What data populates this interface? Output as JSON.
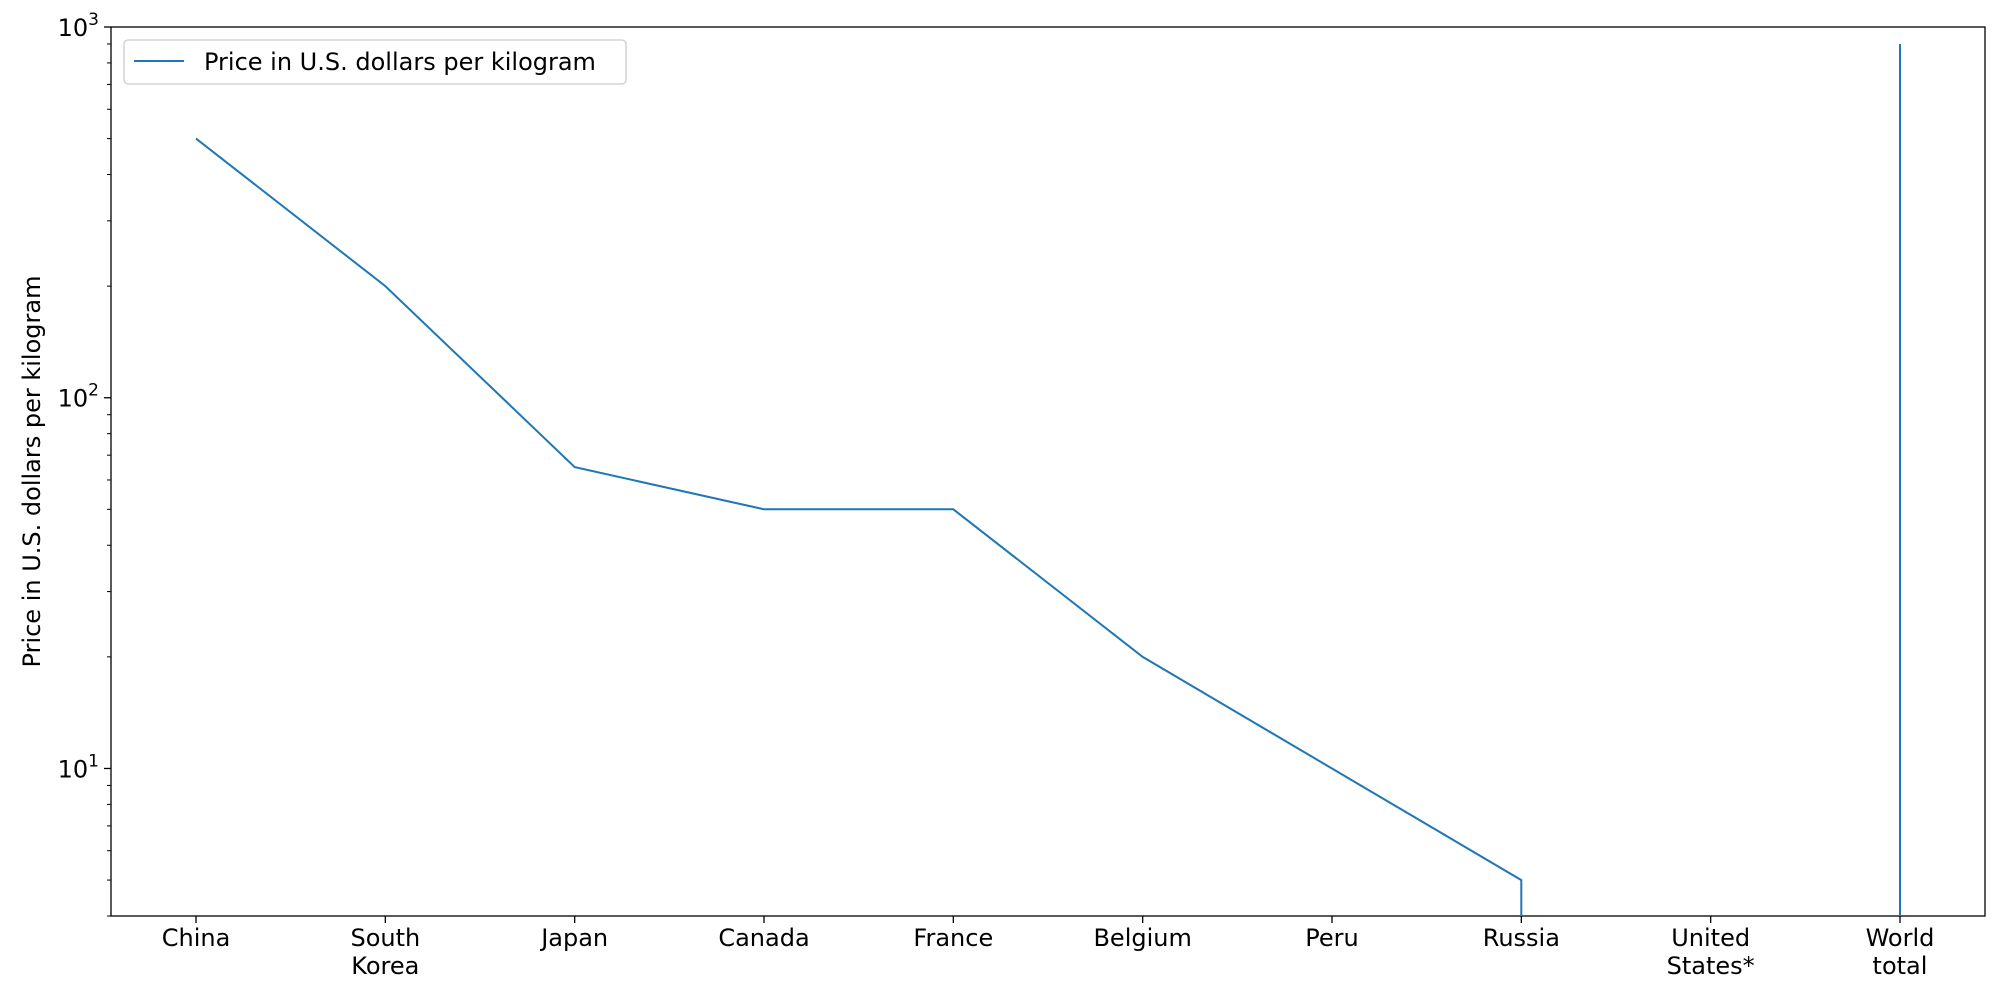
{
  "chart_data": {
    "type": "line",
    "title": "",
    "xlabel": "",
    "ylabel": "Price in U.S. dollars per kilogram",
    "yscale": "log",
    "ylim": [
      4,
      1000
    ],
    "grid": false,
    "legend_position": "upper-left",
    "categories": [
      [
        "China"
      ],
      [
        "South",
        "Korea"
      ],
      [
        "Japan"
      ],
      [
        "Canada"
      ],
      [
        "France"
      ],
      [
        "Belgium"
      ],
      [
        "Peru"
      ],
      [
        "Russia"
      ],
      [
        "United",
        "States*"
      ],
      [
        "World",
        "total"
      ]
    ],
    "y_ticks": [
      {
        "value": 10,
        "base": "10",
        "exp": "1"
      },
      {
        "value": 100,
        "base": "10",
        "exp": "2"
      },
      {
        "value": 1000,
        "base": "10",
        "exp": "3"
      }
    ],
    "series": [
      {
        "name": "Price in U.S. dollars per kilogram",
        "color": "#1f77b4",
        "values": [
          500,
          200,
          65,
          50,
          50,
          20,
          10,
          5,
          0,
          900
        ]
      }
    ]
  }
}
